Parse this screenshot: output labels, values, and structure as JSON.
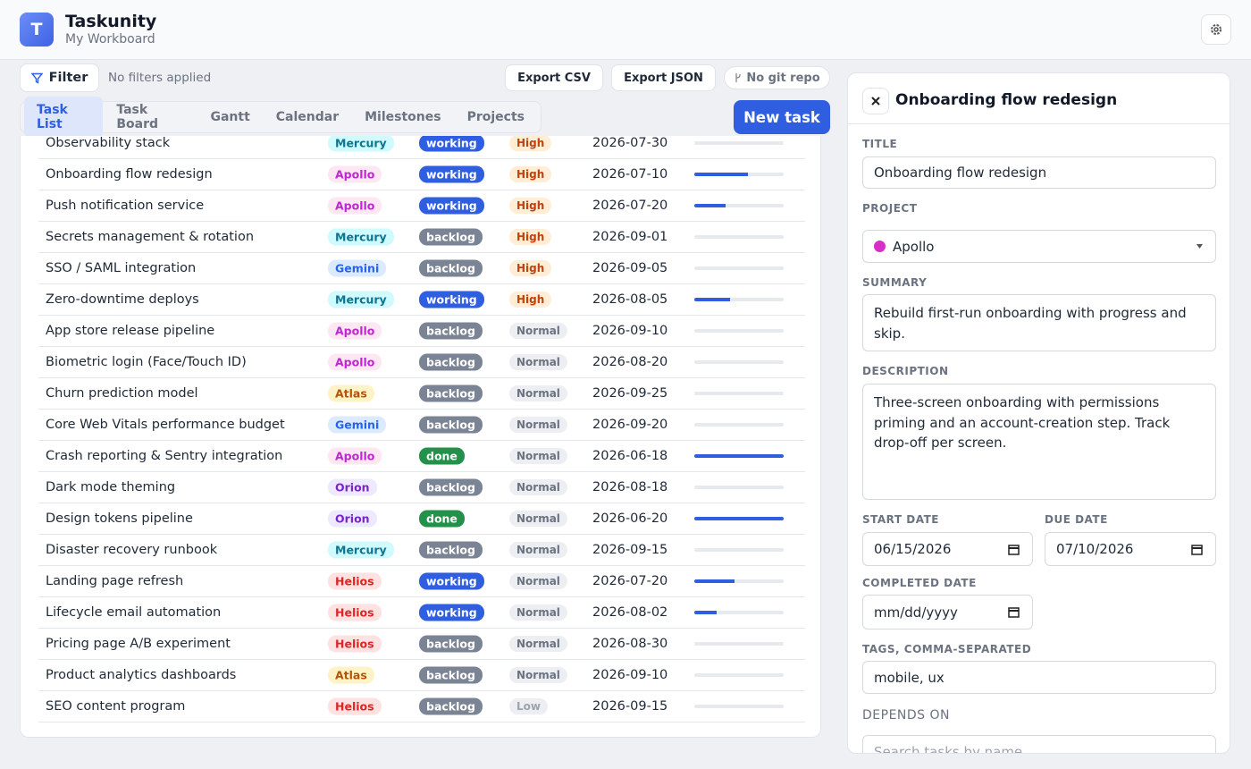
{
  "header": {
    "logo": "T",
    "title": "Taskunity",
    "subtitle": "My Workboard"
  },
  "toolbar": {
    "filter": "Filter",
    "filter_status": "No filters applied",
    "export_csv": "Export CSV",
    "export_json": "Export JSON",
    "git": "No git repo"
  },
  "tabs": [
    "Task List",
    "Task Board",
    "Gantt",
    "Calendar",
    "Milestones",
    "Projects"
  ],
  "new_task": "New task",
  "styles": {
    "project": {
      "Mercury": {
        "fg": "#0e7490",
        "bg": "#cffafe"
      },
      "Apollo": {
        "fg": "#c026d3",
        "bg": "#fce7f3"
      },
      "Gemini": {
        "fg": "#2563eb",
        "bg": "#dbeafe"
      },
      "Atlas": {
        "fg": "#b45309",
        "bg": "#fef3c7"
      },
      "Orion": {
        "fg": "#7e22ce",
        "bg": "#ede9fe"
      },
      "Helios": {
        "fg": "#dc2626",
        "bg": "#fee2e2"
      }
    },
    "status": {
      "working": "#2f5fe0",
      "backlog": "#7b8494",
      "done": "#23914a"
    },
    "priority": {
      "High": {
        "fg": "#c2410c",
        "bg": "#ffedd5"
      },
      "Normal": {
        "fg": "#6b7280",
        "bg": "#eceef2"
      },
      "Low": {
        "fg": "#9ca3af",
        "bg": "#eceef2"
      }
    },
    "progress_color": "#2f5fe0"
  },
  "table": {
    "rows": [
      {
        "name": "Observability stack",
        "project": "Mercury",
        "status": "working",
        "priority": "High",
        "due": "2026-07-30",
        "progress": 0
      },
      {
        "name": "Onboarding flow redesign",
        "project": "Apollo",
        "status": "working",
        "priority": "High",
        "due": "2026-07-10",
        "progress": 60
      },
      {
        "name": "Push notification service",
        "project": "Apollo",
        "status": "working",
        "priority": "High",
        "due": "2026-07-20",
        "progress": 35
      },
      {
        "name": "Secrets management & rotation",
        "project": "Mercury",
        "status": "backlog",
        "priority": "High",
        "due": "2026-09-01",
        "progress": 0
      },
      {
        "name": "SSO / SAML integration",
        "project": "Gemini",
        "status": "backlog",
        "priority": "High",
        "due": "2026-09-05",
        "progress": 0
      },
      {
        "name": "Zero-downtime deploys",
        "project": "Mercury",
        "status": "working",
        "priority": "High",
        "due": "2026-08-05",
        "progress": 40
      },
      {
        "name": "App store release pipeline",
        "project": "Apollo",
        "status": "backlog",
        "priority": "Normal",
        "due": "2026-09-10",
        "progress": 0
      },
      {
        "name": "Biometric login (Face/Touch ID)",
        "project": "Apollo",
        "status": "backlog",
        "priority": "Normal",
        "due": "2026-08-20",
        "progress": 0
      },
      {
        "name": "Churn prediction model",
        "project": "Atlas",
        "status": "backlog",
        "priority": "Normal",
        "due": "2026-09-25",
        "progress": 0
      },
      {
        "name": "Core Web Vitals performance budget",
        "project": "Gemini",
        "status": "backlog",
        "priority": "Normal",
        "due": "2026-09-20",
        "progress": 0
      },
      {
        "name": "Crash reporting & Sentry integration",
        "project": "Apollo",
        "status": "done",
        "priority": "Normal",
        "due": "2026-06-18",
        "progress": 100
      },
      {
        "name": "Dark mode theming",
        "project": "Orion",
        "status": "backlog",
        "priority": "Normal",
        "due": "2026-08-18",
        "progress": 0
      },
      {
        "name": "Design tokens pipeline",
        "project": "Orion",
        "status": "done",
        "priority": "Normal",
        "due": "2026-06-20",
        "progress": 100
      },
      {
        "name": "Disaster recovery runbook",
        "project": "Mercury",
        "status": "backlog",
        "priority": "Normal",
        "due": "2026-09-15",
        "progress": 0
      },
      {
        "name": "Landing page refresh",
        "project": "Helios",
        "status": "working",
        "priority": "Normal",
        "due": "2026-07-20",
        "progress": 45
      },
      {
        "name": "Lifecycle email automation",
        "project": "Helios",
        "status": "working",
        "priority": "Normal",
        "due": "2026-08-02",
        "progress": 25
      },
      {
        "name": "Pricing page A/B experiment",
        "project": "Helios",
        "status": "backlog",
        "priority": "Normal",
        "due": "2026-08-30",
        "progress": 0
      },
      {
        "name": "Product analytics dashboards",
        "project": "Atlas",
        "status": "backlog",
        "priority": "Normal",
        "due": "2026-09-10",
        "progress": 0
      },
      {
        "name": "SEO content program",
        "project": "Helios",
        "status": "backlog",
        "priority": "Low",
        "due": "2026-09-15",
        "progress": 0
      }
    ]
  },
  "editor": {
    "heading": "Onboarding flow redesign",
    "title_label": "TITLE",
    "title": "Onboarding flow redesign",
    "project_label": "PROJECT",
    "project": "Apollo",
    "project_color": "#d62fc8",
    "summary_label": "SUMMARY",
    "summary": "Rebuild first-run onboarding with progress and skip.",
    "description_label": "DESCRIPTION",
    "description": "Three-screen onboarding with permissions priming and an account-creation step. Track drop-off per screen.",
    "start_label": "START DATE",
    "start": "06/15/2026",
    "due_label": "DUE DATE",
    "due": "07/10/2026",
    "completed_label": "COMPLETED DATE",
    "completed_placeholder": "mm/dd/yyyy",
    "tags_label": "TAGS, COMMA-SEPARATED",
    "tags": "mobile, ux",
    "depends_label": "DEPENDS ON",
    "depends_placeholder": "Search tasks by name"
  }
}
